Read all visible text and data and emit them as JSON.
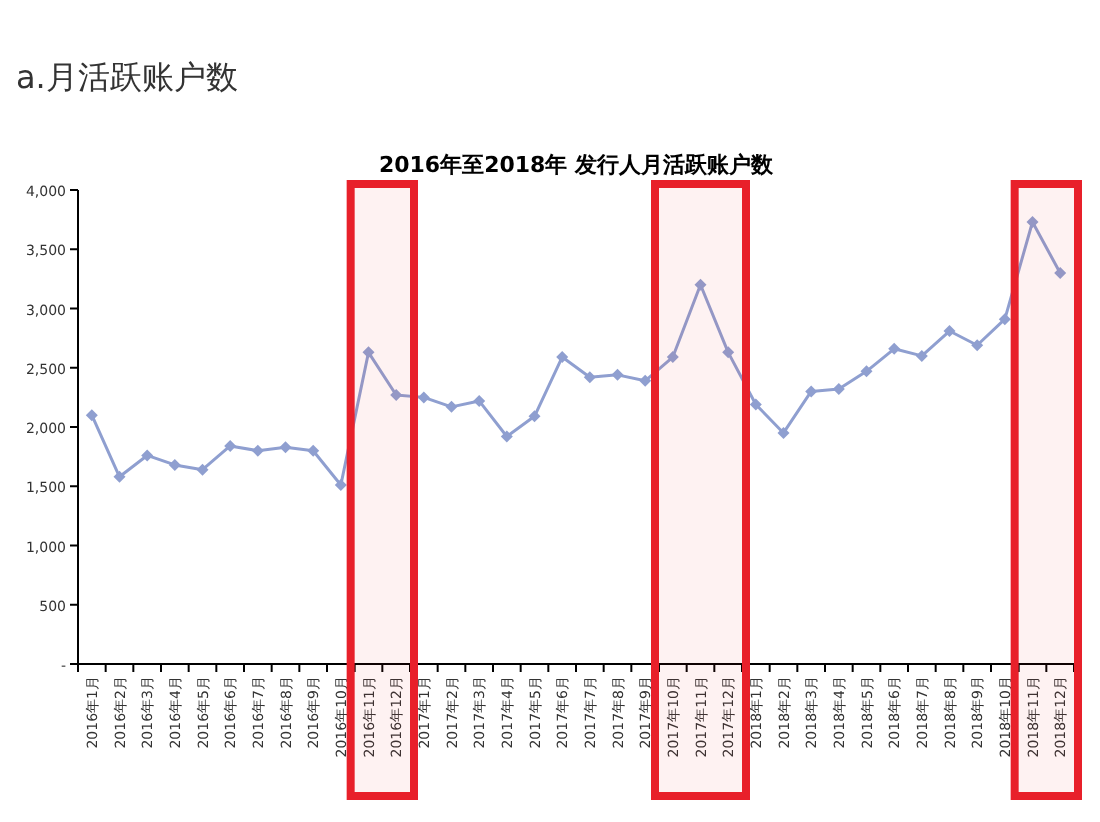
{
  "chart_data": {
    "type": "line",
    "title": "a.月活跃账户数",
    "subtitle": "2016年至2018年 发行人月活跃账户数",
    "categories": [
      "2016年1月",
      "2016年2月",
      "2016年3月",
      "2016年4月",
      "2016年5月",
      "2016年6月",
      "2016年7月",
      "2016年8月",
      "2016年9月",
      "2016年10月",
      "2016年11月",
      "2016年12月",
      "2017年1月",
      "2017年2月",
      "2017年3月",
      "2017年4月",
      "2017年5月",
      "2017年6月",
      "2017年7月",
      "2017年8月",
      "2017年9月",
      "2017年10月",
      "2017年11月",
      "2017年12月",
      "2018年1月",
      "2018年2月",
      "2018年3月",
      "2018年4月",
      "2018年5月",
      "2018年6月",
      "2018年7月",
      "2018年8月",
      "2018年9月",
      "2018年10月",
      "2018年11月",
      "2018年12月"
    ],
    "series": [
      {
        "color": "#8f9fd0",
        "values": [
          2100,
          1580,
          1760,
          1680,
          1640,
          1840,
          1800,
          1830,
          1800,
          1510,
          2630,
          2270,
          2250,
          2170,
          2220,
          1920,
          2090,
          2590,
          2420,
          2440,
          2390,
          2590,
          3200,
          2630,
          2190,
          1950,
          2300,
          2320,
          2470,
          2660,
          2600,
          2810,
          2690,
          2910,
          3730,
          3300
        ]
      }
    ],
    "ylim": [
      0,
      4000
    ],
    "yticks": [
      {
        "value": 0,
        "label": "-"
      },
      {
        "value": 500,
        "label": "500"
      },
      {
        "value": 1000,
        "label": "1,000"
      },
      {
        "value": 1500,
        "label": "1,500"
      },
      {
        "value": 2000,
        "label": "2,000"
      },
      {
        "value": 2500,
        "label": "2,500"
      },
      {
        "value": 3000,
        "label": "3,000"
      },
      {
        "value": 3500,
        "label": "3,500"
      },
      {
        "value": 4000,
        "label": "4,000"
      }
    ],
    "bands": [
      {
        "axis": "x",
        "from": "2016年11月",
        "to": "2016年12月",
        "color": "#e8202a"
      },
      {
        "axis": "x",
        "from": "2017年10月",
        "to": "2017年12月",
        "color": "#e8202a"
      },
      {
        "axis": "x",
        "from": "2018年11月",
        "to": "2018年12月",
        "color": "#e8202a"
      }
    ],
    "marker": "diamond",
    "line_style": "solid",
    "grid": false
  }
}
